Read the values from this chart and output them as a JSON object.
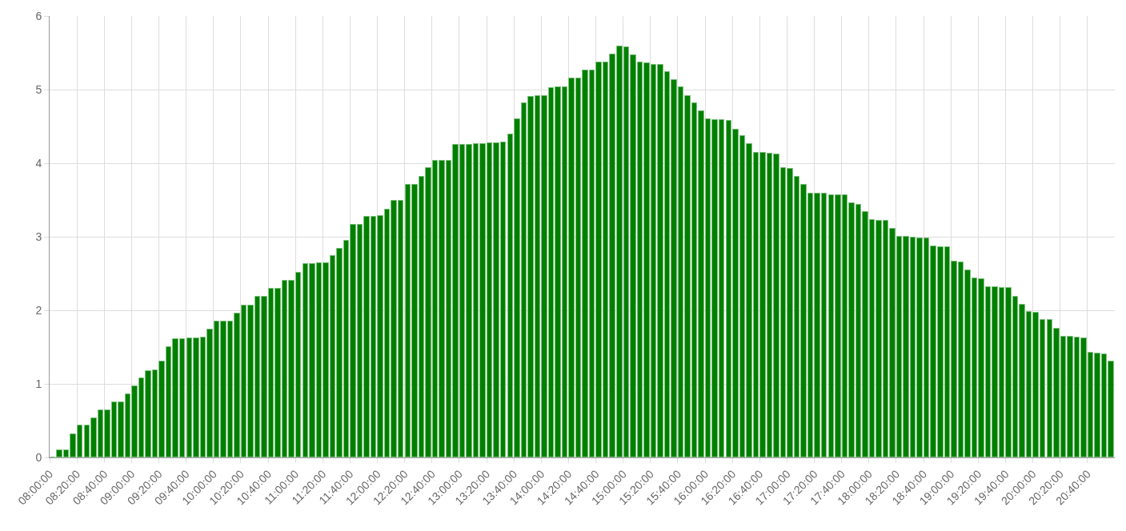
{
  "chart_data": {
    "type": "bar",
    "color": "#008000",
    "x": [
      8,
      8.0833,
      8.1667,
      8.25,
      8.3333,
      8.4167,
      8.5,
      8.5833,
      8.6667,
      8.75,
      8.8333,
      8.9167,
      9,
      9.0833,
      9.1667,
      9.25,
      9.3333,
      9.4167,
      9.5,
      9.5833,
      9.6667,
      9.75,
      9.8333,
      9.9167,
      10,
      10.0833,
      10.1667,
      10.25,
      10.3333,
      10.4167,
      10.5,
      10.5833,
      10.6667,
      10.75,
      10.8333,
      10.9167,
      11,
      11.0833,
      11.1667,
      11.25,
      11.3333,
      11.4167,
      11.5,
      11.5833,
      11.6667,
      11.75,
      11.8333,
      11.9167,
      12,
      12.0833,
      12.1667,
      12.25,
      12.3333,
      12.4167,
      12.5,
      12.5833,
      12.6667,
      12.75,
      12.8333,
      12.9167,
      13,
      13.0833,
      13.1667,
      13.25,
      13.3333,
      13.4167,
      13.5,
      13.5833,
      13.6667,
      13.75,
      13.8333,
      13.9167,
      14,
      14.0833,
      14.1667,
      14.25,
      14.3333,
      14.4167,
      14.5,
      14.5833,
      14.6667,
      14.75,
      14.8333,
      14.9167,
      15,
      15.0833,
      15.1667,
      15.25,
      15.3333,
      15.4167,
      15.5,
      15.5833,
      15.6667,
      15.75,
      15.8333,
      15.9167,
      16,
      16.0833,
      16.1667,
      16.25,
      16.3333,
      16.4167,
      16.5,
      16.5833,
      16.6667,
      16.75,
      16.8333,
      16.9167,
      17,
      17.0833,
      17.1667,
      17.25,
      17.3333,
      17.4167,
      17.5,
      17.5833,
      17.6667,
      17.75,
      17.8333,
      17.9167,
      18,
      18.0833,
      18.1667,
      18.25,
      18.3333,
      18.4167,
      18.5,
      18.5833,
      18.6667,
      18.75,
      18.8333,
      18.9167,
      19,
      19.0833,
      19.1667,
      19.25,
      19.3333,
      19.4167,
      19.5,
      19.5833,
      19.6667,
      19.75,
      19.8333,
      19.9167,
      20,
      20.0833,
      20.1667,
      20.25,
      20.3333,
      20.4167,
      20.5,
      20.5833,
      20.6667,
      20.75,
      20.8333,
      20.9167
    ],
    "values": [
      0,
      0.1,
      0.1,
      0.32,
      0.43,
      0.43,
      0.53,
      0.64,
      0.64,
      0.75,
      0.75,
      0.86,
      0.97,
      1.08,
      1.17,
      1.18,
      1.3,
      1.5,
      1.61,
      1.61,
      1.62,
      1.62,
      1.63,
      1.74,
      1.85,
      1.85,
      1.85,
      1.96,
      2.06,
      2.06,
      2.18,
      2.18,
      2.29,
      2.29,
      2.4,
      2.4,
      2.51,
      2.63,
      2.63,
      2.64,
      2.64,
      2.74,
      2.84,
      2.95,
      3.16,
      3.16,
      3.27,
      3.27,
      3.28,
      3.37,
      3.49,
      3.49,
      3.71,
      3.71,
      3.82,
      3.93,
      4.03,
      4.03,
      4.03,
      4.25,
      4.25,
      4.25,
      4.26,
      4.26,
      4.27,
      4.27,
      4.28,
      4.39,
      4.6,
      4.81,
      4.9,
      4.91,
      4.91,
      5.02,
      5.03,
      5.03,
      5.15,
      5.15,
      5.26,
      5.26,
      5.37,
      5.37,
      5.48,
      5.59,
      5.58,
      5.47,
      5.37,
      5.36,
      5.34,
      5.34,
      5.24,
      5.13,
      5.03,
      4.91,
      4.81,
      4.71,
      4.6,
      4.59,
      4.59,
      4.58,
      4.46,
      4.37,
      4.26,
      4.14,
      4.14,
      4.13,
      4.12,
      3.93,
      3.92,
      3.81,
      3.71,
      3.59,
      3.59,
      3.59,
      3.57,
      3.56,
      3.56,
      3.46,
      3.44,
      3.34,
      3.23,
      3.22,
      3.22,
      3.11,
      3.0,
      3.0,
      2.99,
      2.98,
      2.98,
      2.87,
      2.86,
      2.86,
      2.66,
      2.65,
      2.54,
      2.43,
      2.42,
      2.32,
      2.31,
      2.3,
      2.3,
      2.19,
      2.08,
      1.98,
      1.97,
      1.87,
      1.87,
      1.75,
      1.64,
      1.64,
      1.63,
      1.62,
      1.42,
      1.41,
      1.4,
      1.3
    ],
    "xlim": [
      8,
      21
    ],
    "xticks": [
      {
        "value": 8,
        "label": "08:00:00"
      },
      {
        "value": 8.3333,
        "label": "08:20:00"
      },
      {
        "value": 8.6667,
        "label": "08:40:00"
      },
      {
        "value": 9,
        "label": "09:00:00"
      },
      {
        "value": 9.3333,
        "label": "09:20:00"
      },
      {
        "value": 9.6667,
        "label": "09:40:00"
      },
      {
        "value": 10,
        "label": "10:00:00"
      },
      {
        "value": 10.3333,
        "label": "10:20:00"
      },
      {
        "value": 10.6667,
        "label": "10:40:00"
      },
      {
        "value": 11,
        "label": "11:00:00"
      },
      {
        "value": 11.3333,
        "label": "11:20:00"
      },
      {
        "value": 11.6667,
        "label": "11:40:00"
      },
      {
        "value": 12,
        "label": "12:00:00"
      },
      {
        "value": 12.3333,
        "label": "12:20:00"
      },
      {
        "value": 12.6667,
        "label": "12:40:00"
      },
      {
        "value": 13,
        "label": "13:00:00"
      },
      {
        "value": 13.3333,
        "label": "13:20:00"
      },
      {
        "value": 13.6667,
        "label": "13:40:00"
      },
      {
        "value": 14,
        "label": "14:00:00"
      },
      {
        "value": 14.3333,
        "label": "14:20:00"
      },
      {
        "value": 14.6667,
        "label": "14:40:00"
      },
      {
        "value": 15,
        "label": "15:00:00"
      },
      {
        "value": 15.3333,
        "label": "15:20:00"
      },
      {
        "value": 15.6667,
        "label": "15:40:00"
      },
      {
        "value": 16,
        "label": "16:00:00"
      },
      {
        "value": 16.3333,
        "label": "16:20:00"
      },
      {
        "value": 16.6667,
        "label": "16:40:00"
      },
      {
        "value": 17,
        "label": "17:00:00"
      },
      {
        "value": 17.3333,
        "label": "17:20:00"
      },
      {
        "value": 17.6667,
        "label": "17:40:00"
      },
      {
        "value": 18,
        "label": "18:00:00"
      },
      {
        "value": 18.3333,
        "label": "18:20:00"
      },
      {
        "value": 18.6667,
        "label": "18:40:00"
      },
      {
        "value": 19,
        "label": "19:00:00"
      },
      {
        "value": 19.3333,
        "label": "19:20:00"
      },
      {
        "value": 19.6667,
        "label": "19:40:00"
      },
      {
        "value": 20,
        "label": "20:00:00"
      },
      {
        "value": 20.3333,
        "label": "20:20:00"
      },
      {
        "value": 20.6667,
        "label": "20:40:00"
      }
    ],
    "ylim": [
      0,
      6
    ],
    "yticks": [
      0,
      1,
      2,
      3,
      4,
      5,
      6
    ],
    "grid": true
  }
}
